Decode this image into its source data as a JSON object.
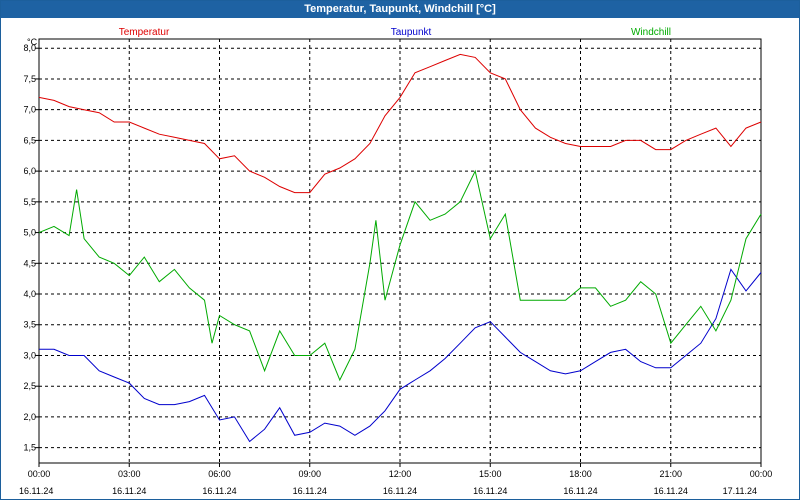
{
  "window": {
    "title": "Temperatur, Taupunkt, Windchill [°C]"
  },
  "chart_data": {
    "type": "line",
    "title": "Temperatur, Taupunkt, Windchill [°C]",
    "ylabel": "°C",
    "ylim": [
      1.25,
      8.15
    ],
    "xlim": [
      0,
      24
    ],
    "grid": true,
    "legend_placement": "top",
    "y_ticks": [
      "1,5",
      "2,0",
      "2,5",
      "3,0",
      "3,5",
      "4,0",
      "4,5",
      "5,0",
      "5,5",
      "6,0",
      "6,5",
      "7,0",
      "7,5",
      "8,0"
    ],
    "x_ticks": [
      {
        "time": "00:00",
        "date": "16.11.24"
      },
      {
        "time": "03:00",
        "date": "16.11.24"
      },
      {
        "time": "06:00",
        "date": "16.11.24"
      },
      {
        "time": "09:00",
        "date": "16.11.24"
      },
      {
        "time": "12:00",
        "date": "16.11.24"
      },
      {
        "time": "15:00",
        "date": "16.11.24"
      },
      {
        "time": "18:00",
        "date": "16.11.24"
      },
      {
        "time": "21:00",
        "date": "16.11.24"
      },
      {
        "time": "00:00",
        "date": "17.11.24"
      }
    ],
    "series": [
      {
        "name": "Temperatur",
        "color": "#dd0000",
        "x": [
          0,
          0.5,
          1,
          1.5,
          2,
          2.5,
          3,
          3.5,
          4,
          4.5,
          5,
          5.5,
          6,
          6.5,
          7,
          7.5,
          8,
          8.5,
          9,
          9.5,
          10,
          10.5,
          11,
          11.5,
          12,
          12.5,
          13,
          13.5,
          14,
          14.5,
          15,
          15.5,
          16,
          16.5,
          17,
          17.5,
          18,
          18.5,
          19,
          19.5,
          20,
          20.5,
          21,
          21.5,
          22,
          22.5,
          23,
          23.5,
          24
        ],
        "values": [
          7.2,
          7.15,
          7.05,
          7.0,
          6.95,
          6.8,
          6.8,
          6.7,
          6.6,
          6.55,
          6.5,
          6.45,
          6.2,
          6.25,
          6.0,
          5.9,
          5.75,
          5.65,
          5.65,
          5.95,
          6.05,
          6.2,
          6.45,
          6.9,
          7.2,
          7.6,
          7.7,
          7.8,
          7.9,
          7.85,
          7.6,
          7.5,
          7.0,
          6.7,
          6.55,
          6.45,
          6.4,
          6.4,
          6.4,
          6.5,
          6.5,
          6.35,
          6.35,
          6.5,
          6.6,
          6.7,
          6.4,
          6.7,
          6.8
        ]
      },
      {
        "name": "Taupunkt",
        "color": "#0000cc",
        "x": [
          0,
          0.5,
          1,
          1.5,
          2,
          2.5,
          3,
          3.5,
          4,
          4.5,
          5,
          5.5,
          6,
          6.5,
          7,
          7.5,
          8,
          8.5,
          9,
          9.5,
          10,
          10.5,
          11,
          11.5,
          12,
          12.5,
          13,
          13.5,
          14,
          14.5,
          15,
          15.5,
          16,
          16.5,
          17,
          17.5,
          18,
          18.5,
          19,
          19.5,
          20,
          20.5,
          21,
          21.5,
          22,
          22.5,
          23,
          23.5,
          24
        ],
        "values": [
          3.1,
          3.1,
          3.0,
          3.0,
          2.75,
          2.65,
          2.55,
          2.3,
          2.2,
          2.2,
          2.25,
          2.35,
          1.95,
          2.0,
          1.6,
          1.8,
          2.15,
          1.7,
          1.75,
          1.9,
          1.85,
          1.7,
          1.85,
          2.1,
          2.45,
          2.6,
          2.75,
          2.95,
          3.2,
          3.45,
          3.55,
          3.3,
          3.05,
          2.9,
          2.75,
          2.7,
          2.75,
          2.9,
          3.05,
          3.1,
          2.9,
          2.8,
          2.8,
          3.0,
          3.2,
          3.6,
          4.4,
          4.05,
          4.35
        ]
      },
      {
        "name": "Windchill",
        "color": "#00aa00",
        "x": [
          0,
          0.5,
          1,
          1.25,
          1.5,
          2,
          2.5,
          3,
          3.5,
          4,
          4.5,
          5,
          5.5,
          5.75,
          6,
          6.5,
          7,
          7.5,
          8,
          8.5,
          9,
          9.5,
          10,
          10.5,
          11,
          11.2,
          11.5,
          12,
          12.5,
          13,
          13.5,
          14,
          14.5,
          15,
          15.5,
          16,
          16.5,
          17,
          17.5,
          18,
          18.5,
          19,
          19.5,
          20,
          20.5,
          21,
          21.5,
          22,
          22.5,
          23,
          23.5,
          24
        ],
        "values": [
          5.0,
          5.1,
          4.95,
          5.7,
          4.9,
          4.6,
          4.5,
          4.3,
          4.6,
          4.2,
          4.4,
          4.1,
          3.9,
          3.2,
          3.65,
          3.5,
          3.4,
          2.75,
          3.4,
          3.0,
          3.0,
          3.2,
          2.6,
          3.1,
          4.5,
          5.2,
          3.9,
          4.8,
          5.5,
          5.2,
          5.3,
          5.5,
          6.0,
          4.9,
          5.3,
          3.9,
          3.9,
          3.9,
          3.9,
          4.1,
          4.1,
          3.8,
          3.9,
          4.2,
          4.0,
          3.2,
          3.5,
          3.8,
          3.4,
          3.9,
          4.9,
          5.3
        ]
      }
    ]
  }
}
